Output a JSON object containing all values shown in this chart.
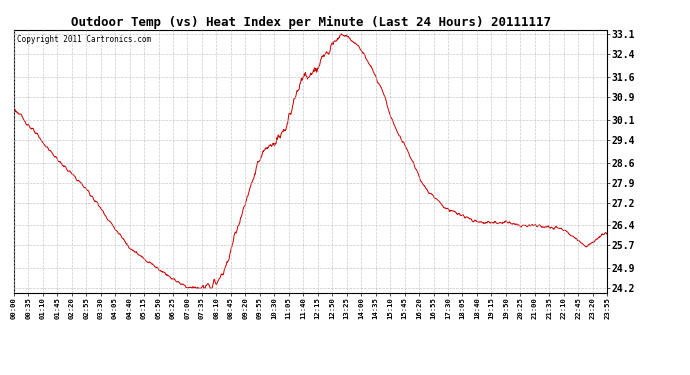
{
  "title": "Outdoor Temp (vs) Heat Index per Minute (Last 24 Hours) 20111117",
  "copyright": "Copyright 2011 Cartronics.com",
  "line_color": "#cc0000",
  "background_color": "#ffffff",
  "grid_color": "#bbbbbb",
  "yticks": [
    24.2,
    24.9,
    25.7,
    26.4,
    27.2,
    27.9,
    28.6,
    29.4,
    30.1,
    30.9,
    31.6,
    32.4,
    33.1
  ],
  "ylim": [
    24.05,
    33.25
  ],
  "xtick_labels": [
    "00:00",
    "00:35",
    "01:10",
    "01:45",
    "02:20",
    "02:55",
    "03:30",
    "04:05",
    "04:40",
    "05:15",
    "05:50",
    "06:25",
    "07:00",
    "07:35",
    "08:10",
    "08:45",
    "09:20",
    "09:55",
    "10:30",
    "11:05",
    "11:40",
    "12:15",
    "12:50",
    "13:25",
    "14:00",
    "14:35",
    "15:10",
    "15:45",
    "16:20",
    "16:55",
    "17:30",
    "18:05",
    "18:40",
    "19:15",
    "19:50",
    "20:25",
    "21:00",
    "21:35",
    "22:10",
    "22:45",
    "23:20",
    "23:55"
  ],
  "num_points": 1440,
  "figsize": [
    6.9,
    3.75
  ],
  "dpi": 100
}
